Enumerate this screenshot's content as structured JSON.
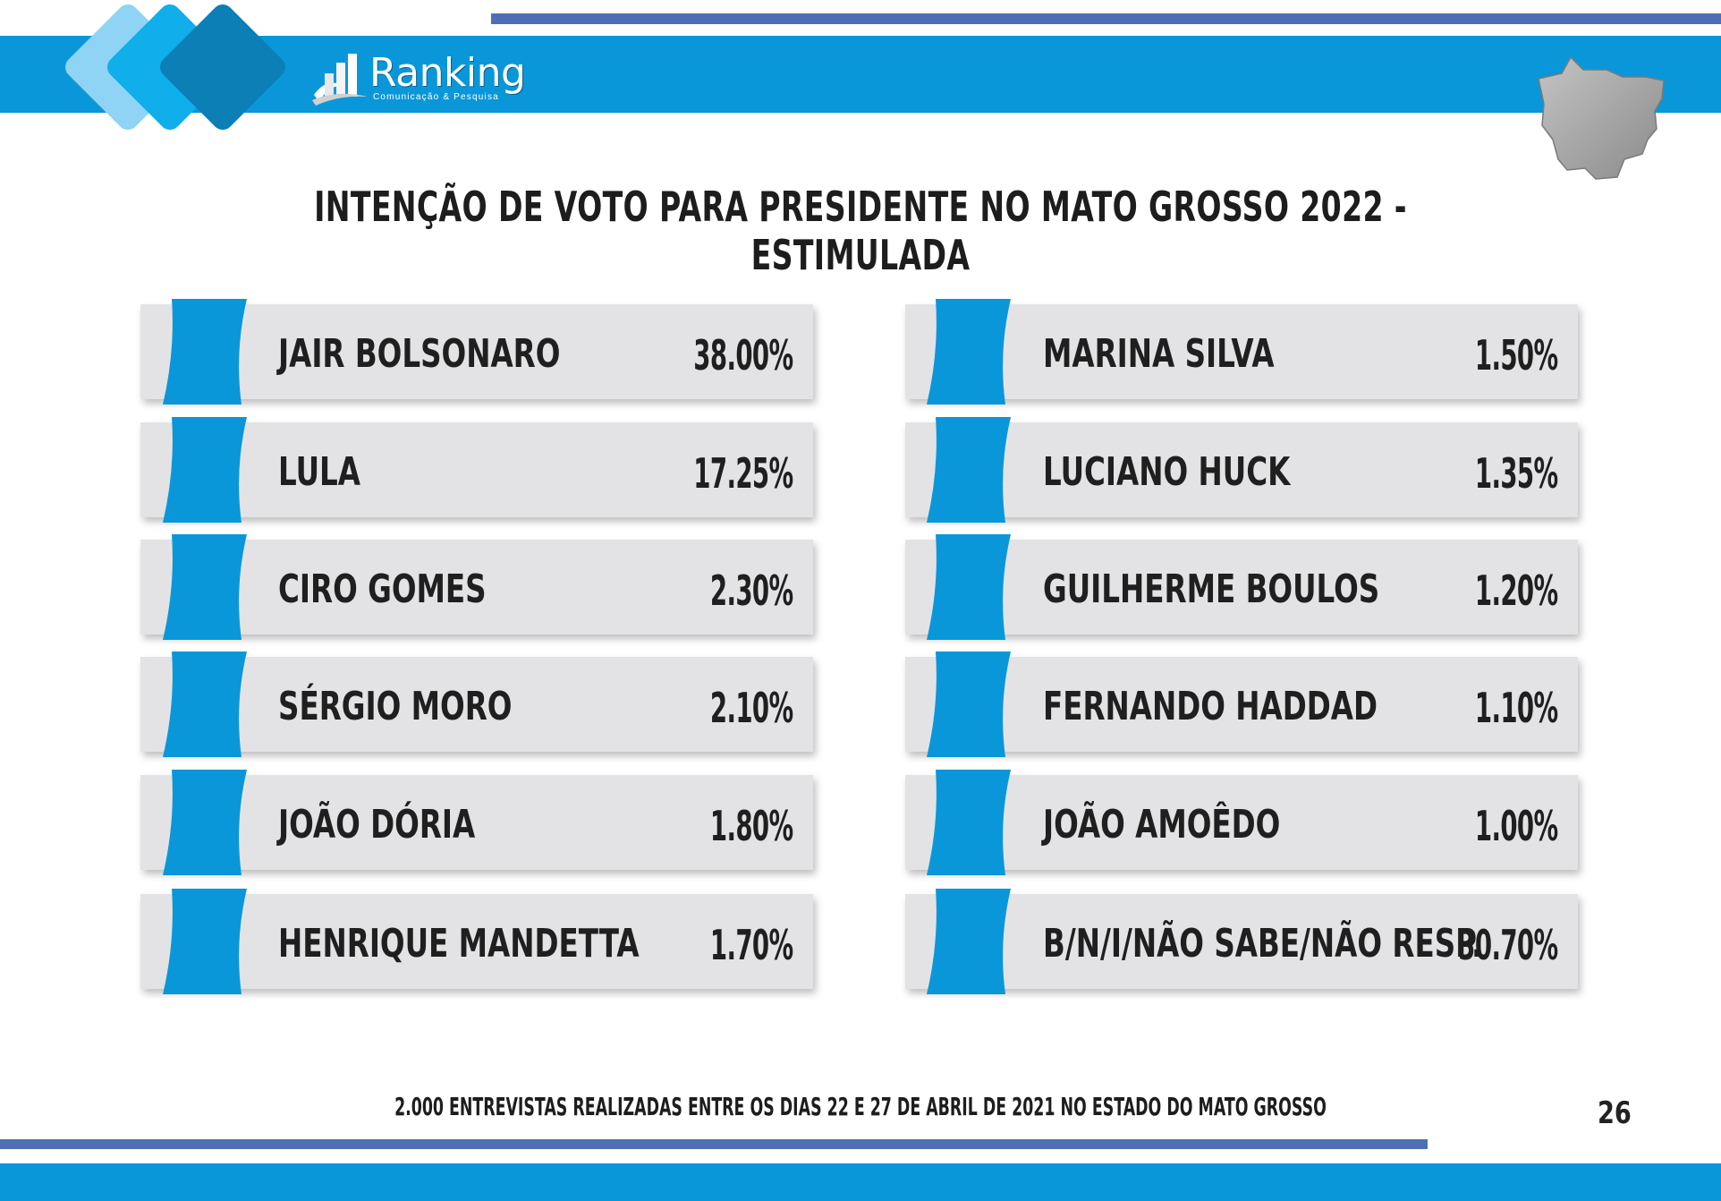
{
  "header": {
    "logo_name": "Ranking",
    "logo_tagline": "Comunicação & Pesquisa",
    "accent_color": "#0a97d9",
    "line_color": "#4f6fb5",
    "map_icon": "mato-grosso-map-icon"
  },
  "chart_data": {
    "type": "table",
    "title": "INTENÇÃO DE VOTO PARA PRESIDENTE NO MATO GROSSO 2022 - ESTIMULADA",
    "columns": [
      [
        {
          "name": "JAIR BOLSONARO",
          "value": 38.0,
          "label": "38.00%"
        },
        {
          "name": "LULA",
          "value": 17.25,
          "label": "17.25%"
        },
        {
          "name": "CIRO GOMES",
          "value": 2.3,
          "label": "2.30%"
        },
        {
          "name": "SÉRGIO MORO",
          "value": 2.1,
          "label": "2.10%"
        },
        {
          "name": "JOÃO DÓRIA",
          "value": 1.8,
          "label": "1.80%"
        },
        {
          "name": "HENRIQUE MANDETTA",
          "value": 1.7,
          "label": "1.70%"
        }
      ],
      [
        {
          "name": "MARINA SILVA",
          "value": 1.5,
          "label": "1.50%"
        },
        {
          "name": "LUCIANO HUCK",
          "value": 1.35,
          "label": "1.35%"
        },
        {
          "name": "GUILHERME BOULOS",
          "value": 1.2,
          "label": "1.20%"
        },
        {
          "name": "FERNANDO HADDAD",
          "value": 1.1,
          "label": "1.10%"
        },
        {
          "name": "JOÃO AMOÊDO",
          "value": 1.0,
          "label": "1.00%"
        },
        {
          "name": "B/N/I/NÃO SABE/NÃO RESP.",
          "value": 30.7,
          "label": "30.70%"
        }
      ]
    ]
  },
  "footer": {
    "note": "2.000 ENTREVISTAS REALIZADAS ENTRE OS DIAS 22 E 27 DE ABRIL DE 2021 NO ESTADO DO MATO GROSSO",
    "page_number": "26"
  }
}
